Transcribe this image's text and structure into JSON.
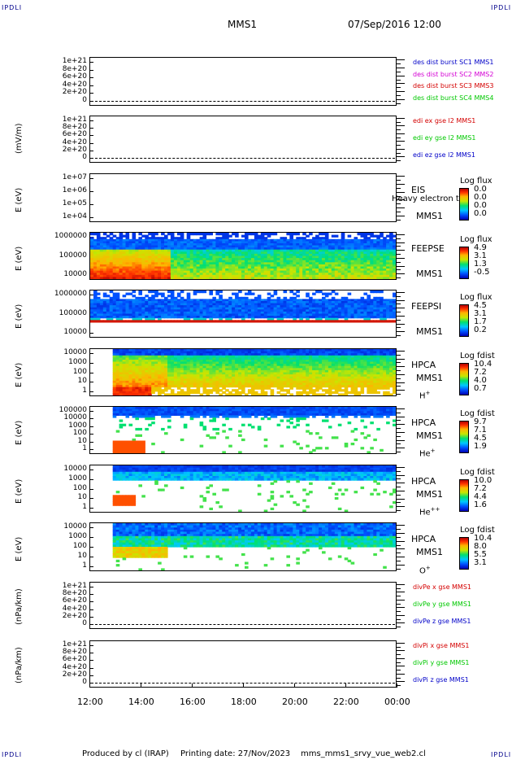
{
  "corner_tl": "IPDLI",
  "corner_tr": "IPDLI",
  "corner_bl": "IPDLI",
  "corner_br": "IPDLI",
  "header": {
    "mission": "MMS1",
    "datetime": "07/Sep/2016 12:00"
  },
  "footer": {
    "produced_by": "Produced by cl (IRAP)",
    "printing_date": "Printing date: 27/Nov/2023",
    "script": "mms_mms1_srvy_vue_web2.cl"
  },
  "chart_data": {
    "type": "heatmap",
    "x_tick_labels": [
      "12:00",
      "14:00",
      "16:00",
      "18:00",
      "20:00",
      "22:00",
      "00:00"
    ],
    "x_hours": [
      12,
      14,
      16,
      18,
      20,
      22,
      24
    ],
    "panels": [
      {
        "id": "p1",
        "ylabel": "",
        "type": "line",
        "ticks": [
          "1e+21",
          "8e+20",
          "6e+20",
          "4e+20",
          "2e+20",
          "0"
        ],
        "legend": [
          {
            "text": "des dist burst SC1 MMS1",
            "color": "#0000c8"
          },
          {
            "text": "des dist burst SC2 MMS2",
            "color": "#d400d4"
          },
          {
            "text": "des dist burst SC3 MMS3",
            "color": "#d40000"
          },
          {
            "text": "des dist burst SC4 MMS4",
            "color": "#00c800"
          }
        ]
      },
      {
        "id": "p2",
        "ylabel": "(mV/m)",
        "type": "line",
        "ticks": [
          "1e+21",
          "8e+20",
          "6e+20",
          "4e+20",
          "2e+20",
          "0"
        ],
        "legend": [
          {
            "text": "edi ex gse l2 MMS1",
            "color": "#d40000"
          },
          {
            "text": "edi ey gse l2 MMS1",
            "color": "#00c800"
          },
          {
            "text": "edi ez gse l2 MMS1",
            "color": "#0000c8"
          }
        ]
      },
      {
        "id": "p3",
        "ylabel": "E (eV)",
        "type": "spectrogram",
        "ticks": [
          "1e+07",
          "1e+06",
          "1e+05",
          "1e+04"
        ],
        "instrument": "EIS",
        "spacecraft": "MMS1",
        "overlay": "Heavy electron to",
        "cbar_title": "Log flux",
        "cbar_values": [
          "0.0",
          "0.0",
          "0.0",
          "0.0"
        ],
        "density": 0
      },
      {
        "id": "p4",
        "ylabel": "E (eV)",
        "type": "spectrogram",
        "ticks": [
          "1000000",
          "100000",
          "10000"
        ],
        "instrument": "FEEPSE",
        "spacecraft": "MMS1",
        "cbar_title": "Log flux",
        "cbar_values": [
          "4.9",
          "3.1",
          "1.3",
          "-0.5"
        ],
        "density": 1
      },
      {
        "id": "p5",
        "ylabel": "E (eV)",
        "type": "spectrogram",
        "ticks": [
          "1000000",
          "100000",
          "10000"
        ],
        "instrument": "FEEPSI",
        "spacecraft": "MMS1",
        "cbar_title": "Log flux",
        "cbar_values": [
          "4.5",
          "3.1",
          "1.7",
          "0.2"
        ],
        "density": 2
      },
      {
        "id": "p6",
        "ylabel": "E (eV)",
        "type": "spectrogram",
        "ticks": [
          "10000",
          "1000",
          "100",
          "10",
          "1"
        ],
        "instrument": "HPCA",
        "spacecraft": "MMS1",
        "species": "H",
        "species_sup": "+",
        "cbar_title": "Log fdist",
        "cbar_values": [
          "10.4",
          "7.2",
          "4.0",
          "0.7"
        ],
        "density": 3
      },
      {
        "id": "p7",
        "ylabel": "E (eV)",
        "type": "spectrogram",
        "ticks": [
          "100000",
          "10000",
          "1000",
          "100",
          "10",
          "1"
        ],
        "instrument": "HPCA",
        "spacecraft": "MMS1",
        "species": "He",
        "species_sup": "+",
        "cbar_title": "Log fdist",
        "cbar_values": [
          "9.7",
          "7.1",
          "4.5",
          "1.9"
        ],
        "density": 4
      },
      {
        "id": "p8",
        "ylabel": "E (eV)",
        "type": "spectrogram",
        "ticks": [
          "10000",
          "1000",
          "100",
          "10",
          "1"
        ],
        "instrument": "HPCA",
        "spacecraft": "MMS1",
        "species": "He",
        "species_sup": "++",
        "cbar_title": "Log fdist",
        "cbar_values": [
          "10.0",
          "7.2",
          "4.4",
          "1.6"
        ],
        "density": 5
      },
      {
        "id": "p9",
        "ylabel": "E (eV)",
        "type": "spectrogram",
        "ticks": [
          "10000",
          "1000",
          "100",
          "10",
          "1"
        ],
        "instrument": "HPCA",
        "spacecraft": "MMS1",
        "species": "O",
        "species_sup": "+",
        "cbar_title": "Log fdist",
        "cbar_values": [
          "10.4",
          "8.0",
          "5.5",
          "3.1"
        ],
        "density": 6
      },
      {
        "id": "p10",
        "ylabel": "(nPa/km)",
        "type": "line",
        "ticks": [
          "1e+21",
          "8e+20",
          "6e+20",
          "4e+20",
          "2e+20",
          "0"
        ],
        "legend": [
          {
            "text": "divPe x gse MMS1",
            "color": "#d40000"
          },
          {
            "text": "divPe y gse MMS1",
            "color": "#00c800"
          },
          {
            "text": "divPe z gse MMS1",
            "color": "#0000c8"
          }
        ]
      },
      {
        "id": "p11",
        "ylabel": "(nPa/km)",
        "type": "line",
        "ticks": [
          "1e+21",
          "8e+20",
          "6e+20",
          "4e+20",
          "2e+20",
          "0"
        ],
        "legend": [
          {
            "text": "divPi x gse MMS1",
            "color": "#d40000"
          },
          {
            "text": "divPi y gse MMS1",
            "color": "#00c800"
          },
          {
            "text": "divPi z gse MMS1",
            "color": "#0000c8"
          }
        ]
      }
    ]
  }
}
